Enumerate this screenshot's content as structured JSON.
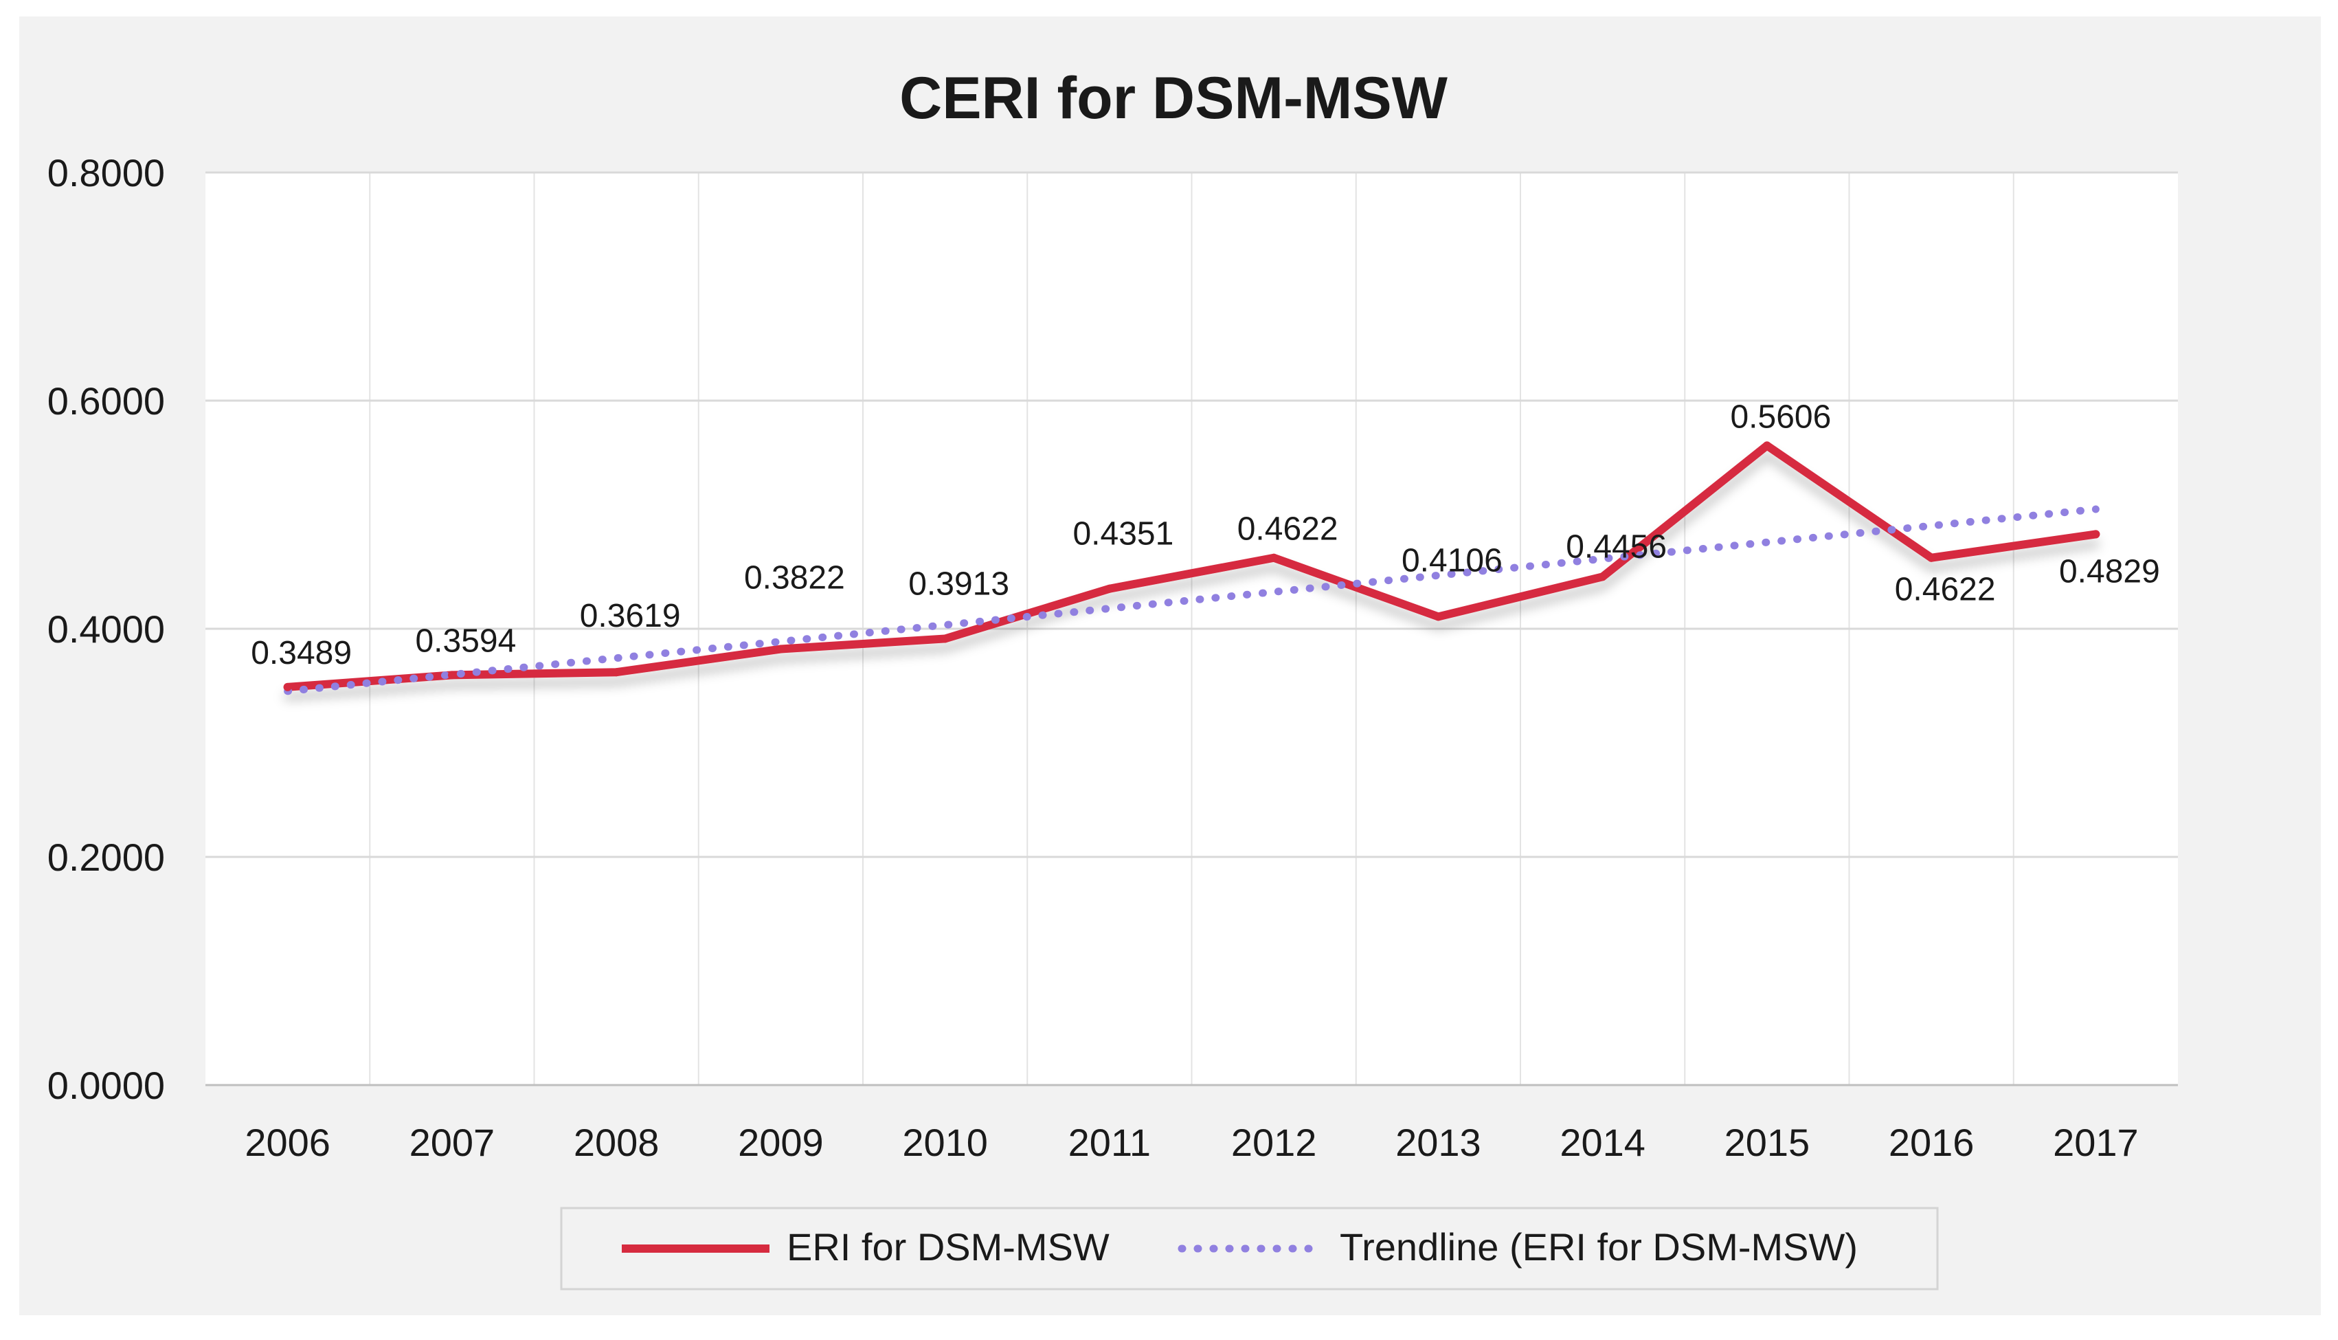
{
  "chart_data": {
    "type": "line",
    "title": "CERI for DSM-MSW",
    "xlabel": "",
    "ylabel": "",
    "categories": [
      "2006",
      "2007",
      "2008",
      "2009",
      "2010",
      "2011",
      "2012",
      "2013",
      "2014",
      "2015",
      "2016",
      "2017"
    ],
    "ylim": [
      0,
      0.8
    ],
    "yticks": [
      "0.0000",
      "0.2000",
      "0.4000",
      "0.6000",
      "0.8000"
    ],
    "grid": true,
    "legend_position": "bottom",
    "series": [
      {
        "name": "ERI for DSM-MSW",
        "style": "solid",
        "color": "#d62b3f",
        "values": [
          0.3489,
          0.3594,
          0.3619,
          0.3822,
          0.3913,
          0.4351,
          0.4622,
          0.4106,
          0.4456,
          0.5606,
          0.4622,
          0.4829
        ],
        "labels": [
          "0.3489",
          "0.3594",
          "0.3619",
          "0.3822",
          "0.3913",
          "0.4351",
          "0.4622",
          "0.4106",
          "0.4456",
          "0.5606",
          "0.4622",
          "0.4829"
        ]
      },
      {
        "name": "Trendline (ERI for DSM-MSW)",
        "style": "dotted",
        "color": "#9080e0",
        "values": [
          0.3453,
          0.3598,
          0.3743,
          0.3888,
          0.4033,
          0.4178,
          0.4323,
          0.4468,
          0.4613,
          0.4758,
          0.4903,
          0.5048
        ]
      }
    ]
  }
}
